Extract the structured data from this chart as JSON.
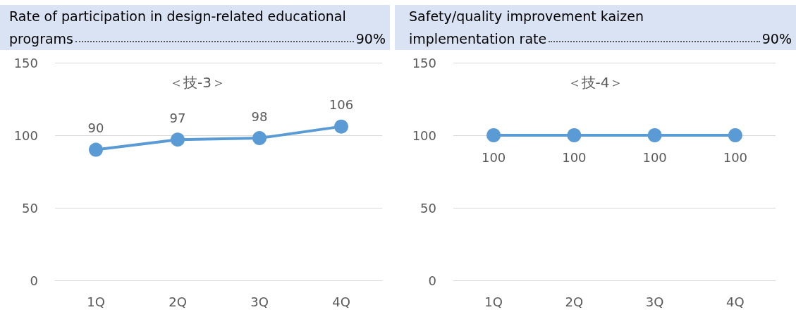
{
  "chart_data": [
    {
      "type": "line",
      "title": "Rate of participation in design-related educational programs",
      "subtitle": "＜技-3＞",
      "annotations": [
        "90%"
      ],
      "categories": [
        "1Q",
        "2Q",
        "3Q",
        "4Q"
      ],
      "values": [
        90,
        97,
        98,
        106
      ],
      "color": "#5b9bd5",
      "ylim": [
        0,
        150
      ],
      "yticks": [
        0,
        50,
        100,
        150
      ],
      "grid": "y",
      "marker": "circle",
      "line_style": "solid",
      "data_labels": true
    },
    {
      "type": "line",
      "title": "Safety/quality improvement kaizen implementation rate",
      "subtitle": "＜技-4＞",
      "annotations": [
        "90%"
      ],
      "categories": [
        "1Q",
        "2Q",
        "3Q",
        "4Q"
      ],
      "values": [
        100,
        100,
        100,
        100
      ],
      "color": "#5b9bd5",
      "ylim": [
        0,
        150
      ],
      "yticks": [
        0,
        50,
        100,
        150
      ],
      "grid": "y",
      "marker": "circle",
      "line_style": "solid",
      "data_labels": true
    }
  ]
}
